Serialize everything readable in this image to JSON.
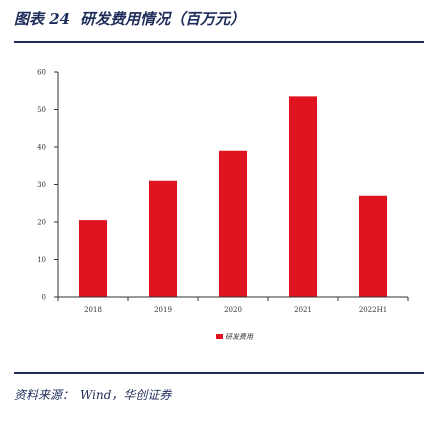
{
  "figure": {
    "label": "图表 24",
    "title": "研发费用情况（百万元）"
  },
  "source": {
    "label": "资料来源：",
    "providers": "Wind，华创证券"
  },
  "colors": {
    "bar": "#e0141e",
    "rule": "#1f2d5a",
    "axis": "#333333"
  },
  "chart_data": {
    "type": "bar",
    "categories": [
      "2018",
      "2019",
      "2020",
      "2021",
      "2022H1"
    ],
    "series": [
      {
        "name": "研发费用",
        "values": [
          20.5,
          31,
          39,
          53.5,
          27
        ]
      }
    ],
    "ylim": [
      0,
      60
    ],
    "yticks": [
      0,
      10,
      20,
      30,
      40,
      50,
      60
    ],
    "grid": false,
    "legend": "bottom-center"
  }
}
